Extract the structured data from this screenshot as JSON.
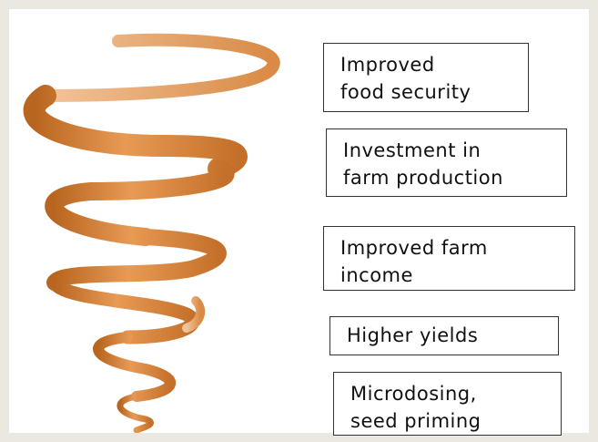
{
  "boxes": [
    {
      "lines": [
        "Improved",
        "food security"
      ]
    },
    {
      "lines": [
        "Investment in",
        "farm production"
      ]
    },
    {
      "lines": [
        "Improved farm",
        "income"
      ]
    },
    {
      "lines": [
        "Higher yields"
      ]
    },
    {
      "lines": [
        "Microdosing,",
        "seed priming"
      ]
    }
  ]
}
